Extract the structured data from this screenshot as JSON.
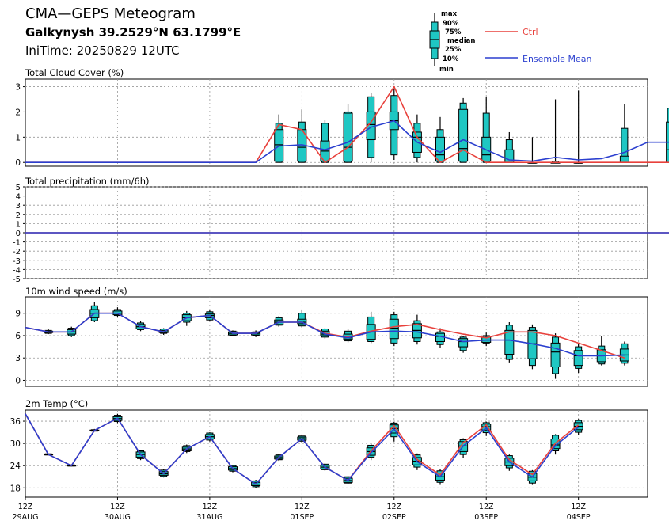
{
  "header": {
    "title": "CMA—GEPS Meteogram",
    "location": "Galkynysh 39.2529°N 63.1799°E",
    "init_time": "IniTime: 20250829 12UTC"
  },
  "legend": {
    "box_labels": [
      "max",
      "90%",
      "75%",
      "median",
      "25%",
      "10%",
      "min"
    ],
    "ctrl_label": "Ctrl",
    "mean_label": "Ensemble Mean",
    "colors": {
      "ctrl": "#e8413c",
      "mean": "#2b3fcf",
      "box": "#1fc7c3"
    }
  },
  "x_axis": {
    "categories": [
      "12Z 29AUG",
      "12Z 30AUG",
      "12Z 31AUG",
      "12Z 01SEP",
      "12Z 02SEP",
      "12Z 03SEP",
      "12Z 04SEP"
    ],
    "ticks": [
      {
        "hour": "12Z",
        "date": "29AUG"
      },
      {
        "hour": "12Z",
        "date": "30AUG"
      },
      {
        "hour": "12Z",
        "date": "31AUG"
      },
      {
        "hour": "12Z",
        "date": "01SEP"
      },
      {
        "hour": "12Z",
        "date": "02SEP"
      },
      {
        "hour": "12Z",
        "date": "03SEP"
      },
      {
        "hour": "12Z",
        "date": "04SEP"
      }
    ],
    "step_hours": 6
  },
  "chart_data": [
    {
      "type": "box",
      "title": "Total Cloud Cover (%)",
      "ylim": [
        -0.15,
        3.3
      ],
      "yticks": [
        0,
        1,
        2,
        3
      ],
      "ctrl": [
        0,
        0,
        0,
        0,
        0,
        0,
        0,
        0,
        0,
        0,
        0,
        1.5,
        1.3,
        0,
        0.6,
        1.6,
        3.0,
        1.0,
        0,
        0.5,
        0,
        0,
        0,
        0,
        0,
        0,
        0,
        0,
        0
      ],
      "mean": [
        0,
        0,
        0,
        0,
        0,
        0,
        0,
        0,
        0,
        0,
        0,
        0.65,
        0.7,
        0.5,
        0.8,
        1.4,
        1.65,
        0.8,
        0.4,
        0.9,
        0.5,
        0.1,
        0.05,
        0.2,
        0.1,
        0.15,
        0.4,
        0.8,
        0.8
      ],
      "boxes": [
        {
          "i": 11,
          "min": 0,
          "q10": 0,
          "q25": 0.05,
          "median": 0.7,
          "q75": 1.3,
          "q90": 1.55,
          "max": 1.9
        },
        {
          "i": 12,
          "min": 0,
          "q10": 0,
          "q25": 0.05,
          "median": 0.6,
          "q75": 1.3,
          "q90": 1.6,
          "max": 2.1
        },
        {
          "i": 13,
          "min": 0,
          "q10": 0,
          "q25": 0.05,
          "median": 0.45,
          "q75": 0.85,
          "q90": 1.55,
          "max": 1.7
        },
        {
          "i": 14,
          "min": 0,
          "q10": 0,
          "q25": 0.05,
          "median": 0.6,
          "q75": 1.95,
          "q90": 2.0,
          "max": 2.3
        },
        {
          "i": 15,
          "min": 0,
          "q10": 0.2,
          "q25": 0.9,
          "median": 1.5,
          "q75": 2.0,
          "q90": 2.6,
          "max": 2.75
        },
        {
          "i": 16,
          "min": 0.1,
          "q10": 0.3,
          "q25": 1.3,
          "median": 1.65,
          "q75": 2.0,
          "q90": 2.65,
          "max": 2.9
        },
        {
          "i": 17,
          "min": 0,
          "q10": 0.2,
          "q25": 0.4,
          "median": 1.0,
          "q75": 1.2,
          "q90": 1.55,
          "max": 1.9
        },
        {
          "i": 18,
          "min": 0,
          "q10": 0,
          "q25": 0.05,
          "median": 0.3,
          "q75": 1.0,
          "q90": 1.3,
          "max": 1.8
        },
        {
          "i": 19,
          "min": 0,
          "q10": 0,
          "q25": 0.05,
          "median": 0.55,
          "q75": 2.1,
          "q90": 2.35,
          "max": 2.55
        },
        {
          "i": 20,
          "min": 0,
          "q10": 0,
          "q25": 0.05,
          "median": 0.3,
          "q75": 1.0,
          "q90": 1.95,
          "max": 2.6
        },
        {
          "i": 21,
          "min": 0,
          "q10": 0,
          "q25": 0,
          "median": 0,
          "q75": 0.5,
          "q90": 0.9,
          "max": 1.2
        },
        {
          "i": 22,
          "min": 0,
          "q10": 0,
          "q25": 0,
          "median": 0,
          "q75": 0,
          "q90": 0,
          "max": 1.0
        },
        {
          "i": 23,
          "min": 0,
          "q10": 0,
          "q25": 0,
          "median": 0,
          "q75": 0,
          "q90": 0.05,
          "max": 2.5
        },
        {
          "i": 24,
          "min": 0,
          "q10": 0,
          "q25": 0,
          "median": 0,
          "q75": 0,
          "q90": 0,
          "max": 2.85
        },
        {
          "i": 26,
          "min": 0,
          "q10": 0,
          "q25": 0,
          "median": 0,
          "q75": 0.25,
          "q90": 1.35,
          "max": 2.3
        },
        {
          "i": 28,
          "min": 0,
          "q10": 0,
          "q25": 0,
          "median": 0.5,
          "q75": 1.6,
          "q90": 2.15,
          "max": 2.2
        }
      ]
    },
    {
      "type": "line",
      "title": "Total precipitation (mm/6h)",
      "ylim": [
        -5,
        5
      ],
      "yticks": [
        5,
        4,
        3,
        2,
        1,
        0,
        -1,
        -2,
        -3,
        -4,
        -5
      ],
      "ctrl": [
        0,
        0,
        0,
        0,
        0,
        0,
        0,
        0,
        0,
        0,
        0,
        0,
        0,
        0,
        0,
        0,
        0,
        0,
        0,
        0,
        0,
        0,
        0,
        0,
        0,
        0,
        0,
        0,
        0
      ],
      "mean": [
        0,
        0,
        0,
        0,
        0,
        0,
        0,
        0,
        0,
        0,
        0,
        0,
        0,
        0,
        0,
        0,
        0,
        0,
        0,
        0,
        0,
        0,
        0,
        0,
        0,
        0,
        0,
        0,
        0
      ]
    },
    {
      "type": "box",
      "title": "10m wind speed (m/s)",
      "ylim": [
        -0.8,
        11.2
      ],
      "yticks": [
        0,
        3,
        6,
        9
      ],
      "ctrl": [
        7.1,
        6.5,
        6.5,
        9.0,
        9.0,
        7.2,
        6.5,
        8.4,
        8.7,
        6.3,
        6.3,
        7.8,
        7.8,
        6.3,
        5.8,
        6.6,
        7.2,
        7.5,
        6.8,
        6.2,
        5.7,
        6.5,
        6.5,
        6.0,
        5.0,
        4.0,
        3.0
      ],
      "mean": [
        7.1,
        6.5,
        6.5,
        9.0,
        9.0,
        7.2,
        6.5,
        8.4,
        8.7,
        6.3,
        6.3,
        7.8,
        7.8,
        6.2,
        5.7,
        6.5,
        6.6,
        6.5,
        5.9,
        5.2,
        5.4,
        5.4,
        4.9,
        4.3,
        3.3,
        3.3,
        3.4
      ],
      "boxes": [
        {
          "i": 1,
          "min": 6.2,
          "q10": 6.3,
          "q25": 6.4,
          "median": 6.5,
          "q75": 6.6,
          "q90": 6.7,
          "max": 6.9
        },
        {
          "i": 2,
          "min": 5.8,
          "q10": 6.0,
          "q25": 6.2,
          "median": 6.5,
          "q75": 6.8,
          "q90": 7.0,
          "max": 7.2
        },
        {
          "i": 3,
          "min": 7.8,
          "q10": 8.0,
          "q25": 8.4,
          "median": 9.0,
          "q75": 9.5,
          "q90": 10.0,
          "max": 10.5
        },
        {
          "i": 4,
          "min": 8.5,
          "q10": 8.7,
          "q25": 8.8,
          "median": 9.0,
          "q75": 9.3,
          "q90": 9.5,
          "max": 9.8
        },
        {
          "i": 5,
          "min": 6.6,
          "q10": 6.8,
          "q25": 6.9,
          "median": 7.2,
          "q75": 7.5,
          "q90": 7.7,
          "max": 8.0
        },
        {
          "i": 6,
          "min": 6.1,
          "q10": 6.3,
          "q25": 6.4,
          "median": 6.5,
          "q75": 6.7,
          "q90": 6.9,
          "max": 7.0
        },
        {
          "i": 7,
          "min": 7.3,
          "q10": 7.8,
          "q25": 8.0,
          "median": 8.4,
          "q75": 8.8,
          "q90": 9.0,
          "max": 9.3
        },
        {
          "i": 8,
          "min": 7.9,
          "q10": 8.1,
          "q25": 8.4,
          "median": 8.7,
          "q75": 8.9,
          "q90": 9.2,
          "max": 9.4
        },
        {
          "i": 9,
          "min": 5.9,
          "q10": 6.0,
          "q25": 6.1,
          "median": 6.3,
          "q75": 6.5,
          "q90": 6.6,
          "max": 6.7
        },
        {
          "i": 10,
          "min": 5.8,
          "q10": 6.0,
          "q25": 6.1,
          "median": 6.3,
          "q75": 6.4,
          "q90": 6.5,
          "max": 6.7
        },
        {
          "i": 11,
          "min": 7.2,
          "q10": 7.4,
          "q25": 7.5,
          "median": 7.8,
          "q75": 8.1,
          "q90": 8.4,
          "max": 8.6
        },
        {
          "i": 12,
          "min": 7.1,
          "q10": 7.3,
          "q25": 7.6,
          "median": 7.8,
          "q75": 8.2,
          "q90": 9.0,
          "max": 9.5
        },
        {
          "i": 13,
          "min": 5.6,
          "q10": 5.8,
          "q25": 6.0,
          "median": 6.2,
          "q75": 6.6,
          "q90": 6.9,
          "max": 7.0
        },
        {
          "i": 14,
          "min": 5.1,
          "q10": 5.3,
          "q25": 5.5,
          "median": 5.7,
          "q75": 6.2,
          "q90": 6.6,
          "max": 6.9
        },
        {
          "i": 15,
          "min": 5.0,
          "q10": 5.2,
          "q25": 5.5,
          "median": 6.5,
          "q75": 7.5,
          "q90": 8.5,
          "max": 9.2
        },
        {
          "i": 16,
          "min": 4.6,
          "q10": 5.0,
          "q25": 5.6,
          "median": 7.0,
          "q75": 8.2,
          "q90": 8.8,
          "max": 9.2
        },
        {
          "i": 17,
          "min": 4.8,
          "q10": 5.2,
          "q25": 5.7,
          "median": 6.7,
          "q75": 7.6,
          "q90": 8.0,
          "max": 8.8
        },
        {
          "i": 18,
          "min": 4.3,
          "q10": 4.8,
          "q25": 5.2,
          "median": 5.9,
          "q75": 6.3,
          "q90": 6.5,
          "max": 7.0
        },
        {
          "i": 19,
          "min": 3.7,
          "q10": 4.0,
          "q25": 4.5,
          "median": 5.2,
          "q75": 5.6,
          "q90": 5.8,
          "max": 6.0
        },
        {
          "i": 20,
          "min": 4.6,
          "q10": 5.0,
          "q25": 5.1,
          "median": 5.4,
          "q75": 5.8,
          "q90": 6.0,
          "max": 6.4
        },
        {
          "i": 21,
          "min": 2.4,
          "q10": 2.8,
          "q25": 3.5,
          "median": 5.4,
          "q75": 6.7,
          "q90": 7.4,
          "max": 7.8
        },
        {
          "i": 22,
          "min": 1.5,
          "q10": 2.0,
          "q25": 2.9,
          "median": 4.9,
          "q75": 6.7,
          "q90": 7.1,
          "max": 7.5
        },
        {
          "i": 23,
          "min": 0.2,
          "q10": 0.9,
          "q25": 1.8,
          "median": 3.8,
          "q75": 5.0,
          "q90": 5.8,
          "max": 6.3
        },
        {
          "i": 24,
          "min": 1.0,
          "q10": 1.6,
          "q25": 2.0,
          "median": 3.3,
          "q75": 4.0,
          "q90": 4.5,
          "max": 5.0
        },
        {
          "i": 25,
          "min": 2.0,
          "q10": 2.2,
          "q25": 2.5,
          "median": 3.3,
          "q75": 4.1,
          "q90": 4.6,
          "max": 5.9
        },
        {
          "i": 26,
          "min": 2.0,
          "q10": 2.3,
          "q25": 2.6,
          "median": 3.4,
          "q75": 4.2,
          "q90": 4.9,
          "max": 5.2
        }
      ]
    },
    {
      "type": "box",
      "title": "2m Temp (°C)",
      "ylim": [
        15.5,
        39.0
      ],
      "yticks": [
        18,
        24,
        30,
        36
      ],
      "ctrl": [
        38,
        27,
        24,
        33.5,
        36.8,
        27,
        21.8,
        28.5,
        31.8,
        23.2,
        19.0,
        26.2,
        31.3,
        23.6,
        20.0,
        28.0,
        34.8,
        25.7,
        21.5,
        30.2,
        35.0,
        25.6,
        21.6,
        30.1,
        35.0
      ],
      "mean": [
        38,
        27,
        24,
        33.5,
        36.8,
        27,
        21.8,
        28.5,
        31.8,
        23.2,
        19.0,
        26.2,
        31.3,
        23.6,
        20.0,
        27.5,
        33.9,
        25.1,
        21.0,
        29.3,
        34.2,
        25.0,
        20.9,
        29.4,
        34.4
      ],
      "boxes": [
        {
          "i": 1,
          "min": 26.8,
          "q10": 26.9,
          "q25": 27.0,
          "median": 27.0,
          "q75": 27.1,
          "q90": 27.2,
          "max": 27.3
        },
        {
          "i": 2,
          "min": 23.8,
          "q10": 23.9,
          "q25": 24.0,
          "median": 24.0,
          "q75": 24.1,
          "q90": 24.2,
          "max": 24.3
        },
        {
          "i": 3,
          "min": 33.2,
          "q10": 33.3,
          "q25": 33.4,
          "median": 33.5,
          "q75": 33.6,
          "q90": 33.7,
          "max": 33.9
        },
        {
          "i": 4,
          "min": 35.5,
          "q10": 35.9,
          "q25": 36.2,
          "median": 36.7,
          "q75": 37.2,
          "q90": 37.6,
          "max": 38.0
        },
        {
          "i": 5,
          "min": 25.5,
          "q10": 25.9,
          "q25": 26.3,
          "median": 27.0,
          "q75": 27.7,
          "q90": 28.0,
          "max": 28.3
        },
        {
          "i": 6,
          "min": 20.8,
          "q10": 21.1,
          "q25": 21.4,
          "median": 21.8,
          "q75": 22.4,
          "q90": 22.8,
          "max": 23.0
        },
        {
          "i": 7,
          "min": 27.4,
          "q10": 27.8,
          "q25": 28.0,
          "median": 28.5,
          "q75": 29.0,
          "q90": 29.4,
          "max": 29.7
        },
        {
          "i": 8,
          "min": 30.5,
          "q10": 30.9,
          "q25": 31.2,
          "median": 31.8,
          "q75": 32.4,
          "q90": 32.8,
          "max": 33.0
        },
        {
          "i": 9,
          "min": 22.2,
          "q10": 22.5,
          "q25": 22.8,
          "median": 23.2,
          "q75": 23.7,
          "q90": 24.0,
          "max": 24.2
        },
        {
          "i": 10,
          "min": 18.0,
          "q10": 18.3,
          "q25": 18.6,
          "median": 19.0,
          "q75": 19.5,
          "q90": 19.9,
          "max": 20.2
        },
        {
          "i": 11,
          "min": 25.3,
          "q10": 25.6,
          "q25": 25.8,
          "median": 26.2,
          "q75": 26.6,
          "q90": 26.9,
          "max": 27.1
        },
        {
          "i": 12,
          "min": 30.2,
          "q10": 30.6,
          "q25": 30.9,
          "median": 31.3,
          "q75": 31.7,
          "q90": 32.0,
          "max": 32.3
        },
        {
          "i": 13,
          "min": 22.6,
          "q10": 22.9,
          "q25": 23.1,
          "median": 23.6,
          "q75": 24.1,
          "q90": 24.4,
          "max": 24.6
        },
        {
          "i": 14,
          "min": 19.0,
          "q10": 19.3,
          "q25": 19.5,
          "median": 20.0,
          "q75": 20.6,
          "q90": 21.0,
          "max": 21.2
        },
        {
          "i": 15,
          "min": 25.5,
          "q10": 26.3,
          "q25": 26.8,
          "median": 27.8,
          "q75": 28.8,
          "q90": 29.5,
          "max": 30.0
        },
        {
          "i": 16,
          "min": 30.5,
          "q10": 31.8,
          "q25": 32.8,
          "median": 34.0,
          "q75": 35.0,
          "q90": 35.5,
          "max": 35.8
        },
        {
          "i": 17,
          "min": 22.8,
          "q10": 23.6,
          "q25": 24.2,
          "median": 25.2,
          "q75": 26.2,
          "q90": 26.9,
          "max": 27.3
        },
        {
          "i": 18,
          "min": 18.8,
          "q10": 19.5,
          "q25": 20.1,
          "median": 21.0,
          "q75": 22.0,
          "q90": 22.6,
          "max": 23.0
        },
        {
          "i": 19,
          "min": 26.0,
          "q10": 27.0,
          "q25": 27.8,
          "median": 29.3,
          "q75": 30.5,
          "q90": 31.0,
          "max": 31.4
        },
        {
          "i": 20,
          "min": 32.0,
          "q10": 32.9,
          "q25": 33.6,
          "median": 34.5,
          "q75": 35.2,
          "q90": 35.6,
          "max": 35.9
        },
        {
          "i": 21,
          "min": 22.6,
          "q10": 23.4,
          "q25": 24.0,
          "median": 25.0,
          "q75": 26.0,
          "q90": 26.7,
          "max": 27.0
        },
        {
          "i": 22,
          "min": 18.8,
          "q10": 19.3,
          "q25": 19.9,
          "median": 20.9,
          "q75": 21.9,
          "q90": 22.5,
          "max": 22.8
        },
        {
          "i": 23,
          "min": 27.0,
          "q10": 28.0,
          "q25": 28.6,
          "median": 29.6,
          "q75": 31.2,
          "q90": 32.2,
          "max": 32.5
        },
        {
          "i": 24,
          "min": 32.3,
          "q10": 33.0,
          "q25": 33.7,
          "median": 34.6,
          "q75": 35.6,
          "q90": 36.2,
          "max": 36.6
        }
      ]
    }
  ]
}
